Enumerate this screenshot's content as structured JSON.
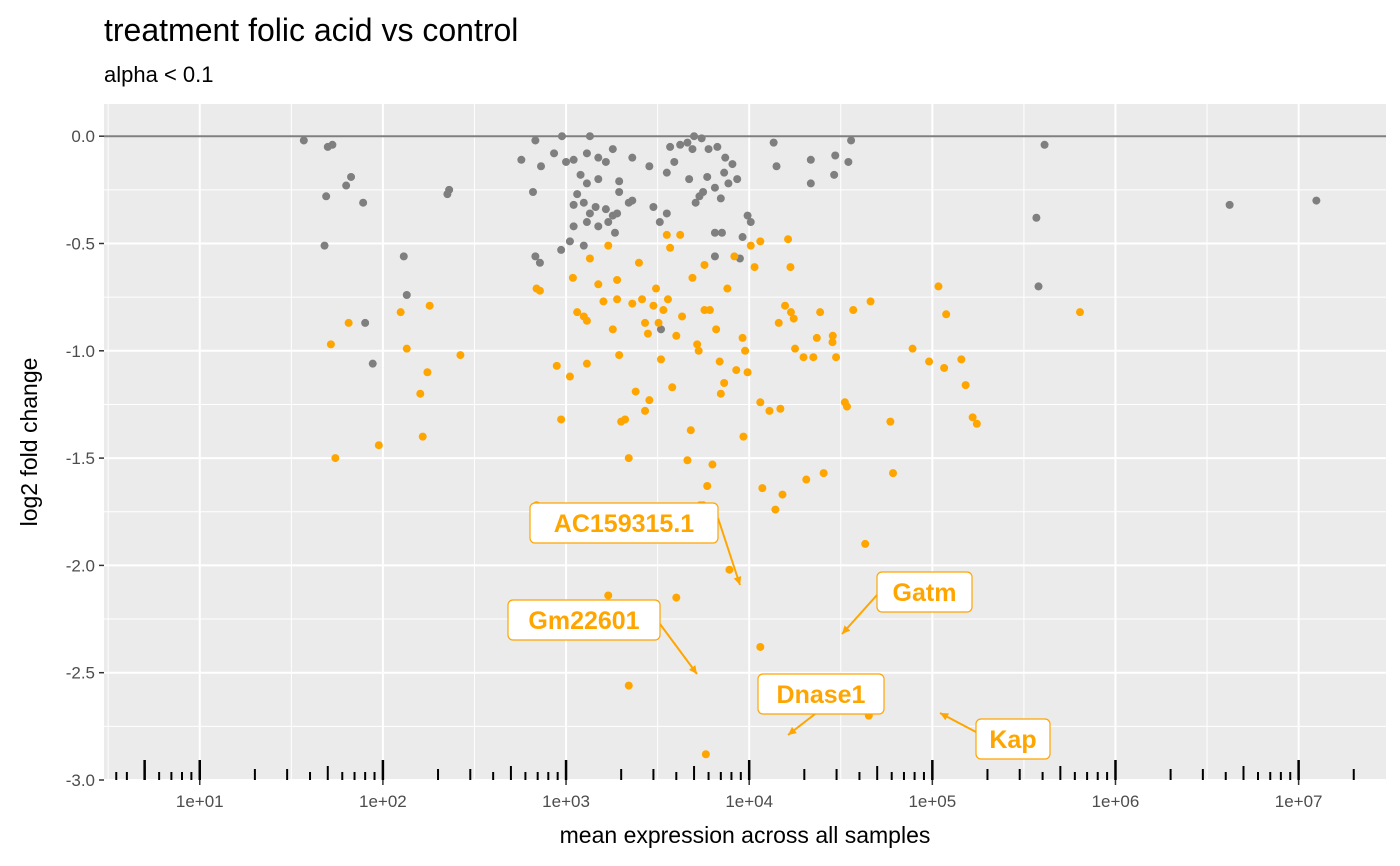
{
  "chart_data": {
    "type": "scatter",
    "title": "treatment folic acid vs control",
    "subtitle": "alpha < 0.1",
    "xlabel": "mean expression across all samples",
    "ylabel": "log2 fold change",
    "x_scale": "log10",
    "xlim": [
      3,
      30000000
    ],
    "ylim": [
      -3.0,
      0.15
    ],
    "x_ticks": [
      {
        "value": 10,
        "label": "1e+01"
      },
      {
        "value": 100,
        "label": "1e+02"
      },
      {
        "value": 1000,
        "label": "1e+03"
      },
      {
        "value": 10000,
        "label": "1e+04"
      },
      {
        "value": 100000,
        "label": "1e+05"
      },
      {
        "value": 1000000,
        "label": "1e+06"
      },
      {
        "value": 10000000,
        "label": "1e+07"
      }
    ],
    "y_ticks": [
      {
        "value": 0.0,
        "label": "0.0"
      },
      {
        "value": -0.5,
        "label": "-0.5"
      },
      {
        "value": -1.0,
        "label": "-1.0"
      },
      {
        "value": -1.5,
        "label": "-1.5"
      },
      {
        "value": -2.0,
        "label": "-2.0"
      },
      {
        "value": -2.5,
        "label": "-2.5"
      },
      {
        "value": -3.0,
        "label": "-3.0"
      }
    ],
    "reference_line_y": 0,
    "grid": true,
    "colors": {
      "panel": "#EBEBEB",
      "grid": "#FFFFFF",
      "not_significant": "#7F7F7F",
      "significant": "#FFA500",
      "zero_line": "#7F7F7F",
      "rug": "#000000"
    },
    "series": [
      {
        "significant": false,
        "points": [
          [
            37,
            -0.02
          ],
          [
            50,
            -0.05
          ],
          [
            53,
            -0.04
          ],
          [
            49,
            -0.28
          ],
          [
            48,
            -0.51
          ],
          [
            67,
            -0.19
          ],
          [
            63,
            -0.23
          ],
          [
            78,
            -0.31
          ],
          [
            130,
            -0.56
          ],
          [
            135,
            -0.74
          ],
          [
            80,
            -0.87
          ],
          [
            88,
            -1.06
          ],
          [
            680,
            -0.02
          ],
          [
            950,
            -0.0
          ],
          [
            1350,
            -0.0
          ],
          [
            570,
            -0.11
          ],
          [
            860,
            -0.08
          ],
          [
            730,
            -0.14
          ],
          [
            1100,
            -0.11
          ],
          [
            1000,
            -0.12
          ],
          [
            1300,
            -0.08
          ],
          [
            1500,
            -0.1
          ],
          [
            1800,
            -0.06
          ],
          [
            2300,
            -0.1
          ],
          [
            1650,
            -0.12
          ],
          [
            1950,
            -0.21
          ],
          [
            1500,
            -0.2
          ],
          [
            1200,
            -0.18
          ],
          [
            1300,
            -0.22
          ],
          [
            1150,
            -0.27
          ],
          [
            1250,
            -0.31
          ],
          [
            1100,
            -0.32
          ],
          [
            1450,
            -0.33
          ],
          [
            1350,
            -0.36
          ],
          [
            1650,
            -0.34
          ],
          [
            1950,
            -0.26
          ],
          [
            2200,
            -0.31
          ],
          [
            1800,
            -0.37
          ],
          [
            1300,
            -0.4
          ],
          [
            1500,
            -0.42
          ],
          [
            1700,
            -0.4
          ],
          [
            1900,
            -0.36
          ],
          [
            2300,
            -0.3
          ],
          [
            1100,
            -0.42
          ],
          [
            1050,
            -0.49
          ],
          [
            940,
            -0.53
          ],
          [
            1250,
            -0.51
          ],
          [
            1850,
            -0.45
          ],
          [
            660,
            -0.26
          ],
          [
            680,
            -0.56
          ],
          [
            720,
            -0.59
          ],
          [
            3000,
            -0.33
          ],
          [
            3250,
            -0.4
          ],
          [
            3550,
            -0.36
          ],
          [
            3550,
            -0.17
          ],
          [
            2850,
            -0.14
          ],
          [
            3700,
            -0.05
          ],
          [
            4200,
            -0.04
          ],
          [
            4600,
            -0.03
          ],
          [
            5000,
            -0.0
          ],
          [
            5500,
            -0.01
          ],
          [
            4900,
            -0.06
          ],
          [
            6000,
            -0.06
          ],
          [
            3900,
            -0.12
          ],
          [
            4700,
            -0.2
          ],
          [
            5350,
            -0.28
          ],
          [
            5100,
            -0.31
          ],
          [
            5600,
            -0.26
          ],
          [
            5900,
            -0.19
          ],
          [
            6500,
            -0.24
          ],
          [
            6700,
            -0.05
          ],
          [
            7400,
            -0.1
          ],
          [
            8100,
            -0.13
          ],
          [
            8600,
            -0.2
          ],
          [
            7700,
            -0.22
          ],
          [
            7300,
            -0.17
          ],
          [
            7000,
            -0.29
          ],
          [
            9800,
            -0.37
          ],
          [
            10200,
            -0.4
          ],
          [
            9200,
            -0.47
          ],
          [
            6500,
            -0.45
          ],
          [
            7100,
            -0.45
          ],
          [
            8900,
            -0.57
          ],
          [
            6500,
            -0.56
          ],
          [
            3300,
            -0.9
          ],
          [
            13600,
            -0.03
          ],
          [
            14100,
            -0.14
          ],
          [
            21700,
            -0.11
          ],
          [
            29500,
            -0.09
          ],
          [
            34800,
            -0.12
          ],
          [
            21700,
            -0.22
          ],
          [
            29100,
            -0.18
          ],
          [
            36000,
            -0.02
          ],
          [
            230,
            -0.25
          ],
          [
            225,
            -0.27
          ],
          [
            370000,
            -0.38
          ],
          [
            380000,
            -0.7
          ],
          [
            410000,
            -0.04
          ],
          [
            4200000,
            -0.32
          ],
          [
            12500000,
            -0.3
          ]
        ]
      },
      {
        "significant": true,
        "points": [
          [
            52,
            -0.97
          ],
          [
            55,
            -1.5
          ],
          [
            65,
            -0.87
          ],
          [
            95,
            -1.44
          ],
          [
            125,
            -0.82
          ],
          [
            135,
            -0.99
          ],
          [
            160,
            -1.2
          ],
          [
            175,
            -1.1
          ],
          [
            165,
            -1.4
          ],
          [
            180,
            -0.79
          ],
          [
            265,
            -1.02
          ],
          [
            690,
            -0.71
          ],
          [
            720,
            -0.72
          ],
          [
            690,
            -1.72
          ],
          [
            890,
            -1.07
          ],
          [
            940,
            -1.32
          ],
          [
            1050,
            -1.12
          ],
          [
            1090,
            -0.66
          ],
          [
            1150,
            -0.82
          ],
          [
            1250,
            -0.84
          ],
          [
            1300,
            -0.86
          ],
          [
            1300,
            -1.06
          ],
          [
            1350,
            -0.57
          ],
          [
            1500,
            -0.69
          ],
          [
            1600,
            -0.77
          ],
          [
            1700,
            -0.51
          ],
          [
            1800,
            -0.9
          ],
          [
            1900,
            -0.76
          ],
          [
            1900,
            -0.67
          ],
          [
            1950,
            -1.02
          ],
          [
            2000,
            -1.33
          ],
          [
            2100,
            -1.32
          ],
          [
            2200,
            -1.5
          ],
          [
            2300,
            -0.78
          ],
          [
            2500,
            -0.59
          ],
          [
            2400,
            -1.19
          ],
          [
            2600,
            -0.76
          ],
          [
            2700,
            -0.87
          ],
          [
            2800,
            -0.92
          ],
          [
            2700,
            -1.28
          ],
          [
            2850,
            -1.23
          ],
          [
            3000,
            -0.79
          ],
          [
            3100,
            -0.71
          ],
          [
            3200,
            -0.87
          ],
          [
            3300,
            -1.04
          ],
          [
            3400,
            -0.81
          ],
          [
            3600,
            -0.76
          ],
          [
            3550,
            -0.46
          ],
          [
            3700,
            -0.52
          ],
          [
            3800,
            -1.17
          ],
          [
            4000,
            -0.93
          ],
          [
            4200,
            -0.46
          ],
          [
            4300,
            -0.84
          ],
          [
            4600,
            -1.51
          ],
          [
            4800,
            -1.37
          ],
          [
            4900,
            -0.66
          ],
          [
            5200,
            -0.97
          ],
          [
            5300,
            -1.0
          ],
          [
            5700,
            -0.6
          ],
          [
            5700,
            -0.81
          ],
          [
            5600,
            -1.72
          ],
          [
            5900,
            -1.63
          ],
          [
            6100,
            -0.81
          ],
          [
            6300,
            -1.53
          ],
          [
            6600,
            -0.9
          ],
          [
            6900,
            -1.05
          ],
          [
            7000,
            -1.2
          ],
          [
            7300,
            -1.15
          ],
          [
            7600,
            -0.71
          ],
          [
            7800,
            -2.02
          ],
          [
            8300,
            -0.56
          ],
          [
            8500,
            -1.09
          ],
          [
            9200,
            -0.94
          ],
          [
            9300,
            -1.4
          ],
          [
            9500,
            -1.0
          ],
          [
            9800,
            -1.1
          ],
          [
            10200,
            -0.51
          ],
          [
            10700,
            -0.61
          ],
          [
            11500,
            -0.49
          ],
          [
            11500,
            -1.24
          ],
          [
            11800,
            -1.64
          ],
          [
            12900,
            -1.28
          ],
          [
            13900,
            -1.74
          ],
          [
            14500,
            -0.87
          ],
          [
            14800,
            -1.27
          ],
          [
            15200,
            -1.67
          ],
          [
            15700,
            -0.79
          ],
          [
            16300,
            -0.48
          ],
          [
            16800,
            -0.61
          ],
          [
            16900,
            -0.82
          ],
          [
            17500,
            -0.85
          ],
          [
            17800,
            -0.99
          ],
          [
            19800,
            -1.03
          ],
          [
            20500,
            -1.6
          ],
          [
            22400,
            -1.03
          ],
          [
            23400,
            -0.94
          ],
          [
            24400,
            -0.82
          ],
          [
            25500,
            -1.57
          ],
          [
            28500,
            -0.96
          ],
          [
            28600,
            -0.93
          ],
          [
            29800,
            -1.03
          ],
          [
            33300,
            -1.24
          ],
          [
            34200,
            -1.26
          ],
          [
            37000,
            -0.81
          ],
          [
            43000,
            -1.9
          ],
          [
            46000,
            -0.77
          ],
          [
            59000,
            -1.33
          ],
          [
            61000,
            -1.57
          ],
          [
            78000,
            -0.99
          ],
          [
            96000,
            -1.05
          ],
          [
            108000,
            -0.7
          ],
          [
            116000,
            -1.08
          ],
          [
            119000,
            -0.83
          ],
          [
            144000,
            -1.04
          ],
          [
            152000,
            -1.16
          ],
          [
            166000,
            -1.31
          ],
          [
            175000,
            -1.34
          ],
          [
            640000,
            -0.82
          ],
          [
            5400,
            -1.72
          ],
          [
            5900,
            -1.87
          ]
        ]
      }
    ],
    "labeled_points": [
      {
        "name": "AC159315.1",
        "x": 4000,
        "y": -2.15
      },
      {
        "name": "Gm22601",
        "x": 2200,
        "y": -2.56
      },
      {
        "name": "Gatm",
        "x": 11500,
        "y": -2.38
      },
      {
        "name": "Dnase1",
        "x": 5800,
        "y": -2.88
      },
      {
        "name": "Kap",
        "x": 45000,
        "y": -2.7
      }
    ],
    "extra_points": [
      [
        1700,
        -2.14
      ]
    ],
    "rug_x": [
      3.5,
      4,
      5,
      6,
      7,
      8,
      9,
      20,
      30,
      40,
      50,
      60,
      70,
      80,
      90,
      200,
      300,
      400,
      500,
      600,
      700,
      800,
      900,
      2000,
      3000,
      4000,
      5000,
      6000,
      7000,
      8000,
      9000,
      20000,
      30000,
      40000,
      50000,
      60000,
      70000,
      80000,
      90000,
      200000,
      300000,
      400000,
      500000,
      600000,
      700000,
      800000,
      900000,
      2000000,
      3000000,
      4000000,
      5000000,
      6000000,
      7000000,
      8000000,
      9000000,
      20000000
    ]
  }
}
